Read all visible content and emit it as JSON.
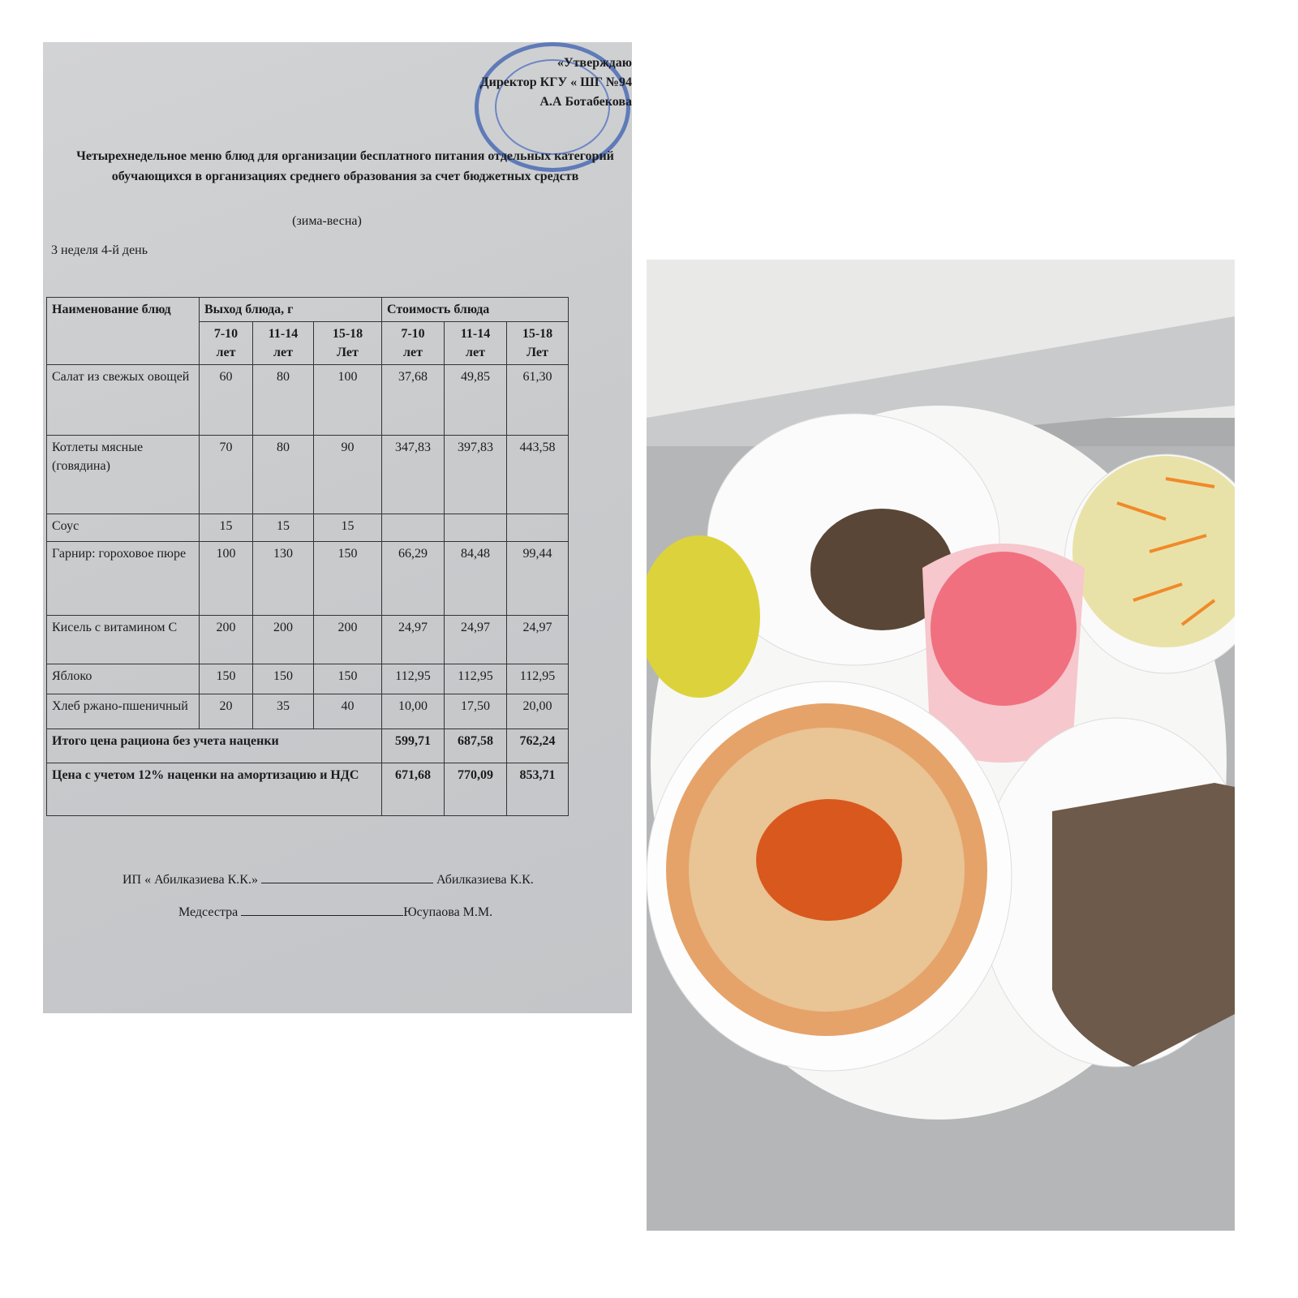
{
  "document": {
    "approval": {
      "line1": "«Утверждаю",
      "line2": "Директор КГУ  « ШГ №94",
      "line3": "А.А Ботабекова"
    },
    "title": "Четырехнедельное меню блюд для организации бесплатного питания отдельных категорий обучающихся в организациях среднего образования за счет бюджетных средств",
    "season": "(зима-весна)",
    "week_day": "3 неделя 4-й день",
    "table": {
      "headers": {
        "name": "Наименование блюд",
        "yield": "Выход блюда, г",
        "cost": "Стоимость блюда"
      },
      "age_groups": [
        [
          "7-10",
          "лет"
        ],
        [
          "11-14",
          "лет"
        ],
        [
          "15-18",
          "Лет"
        ],
        [
          "7-10",
          "лет"
        ],
        [
          "11-14",
          "лет"
        ],
        [
          "15-18",
          "Лет"
        ]
      ],
      "rows": [
        {
          "name": "Салат из свежых овощей",
          "values": [
            "60",
            "80",
            "100",
            "37,68",
            "49,85",
            "61,30"
          ]
        },
        {
          "name": "Котлеты мясные (говядина)",
          "values": [
            "70",
            "80",
            "90",
            "347,83",
            "397,83",
            "443,58"
          ]
        },
        {
          "name": "Соус",
          "values": [
            "15",
            "15",
            "15",
            "",
            "",
            ""
          ]
        },
        {
          "name": "Гарнир: гороховое пюре",
          "values": [
            "100",
            "130",
            "150",
            "66,29",
            "84,48",
            "99,44"
          ]
        },
        {
          "name": "Кисель с витамином С",
          "values": [
            "200",
            "200",
            "200",
            "24,97",
            "24,97",
            "24,97"
          ]
        },
        {
          "name": "Яблоко",
          "values": [
            "150",
            "150",
            "150",
            "112,95",
            "112,95",
            "112,95"
          ]
        },
        {
          "name": "Хлеб ржано-пшеничный",
          "values": [
            "20",
            "35",
            "40",
            "10,00",
            "17,50",
            "20,00"
          ]
        }
      ],
      "totals": [
        {
          "label": "Итого цена рациона без учета наценки",
          "values": [
            "599,71",
            "687,58",
            "762,24"
          ]
        },
        {
          "label": "Цена с учетом 12% наценки на амортизацию и НДС",
          "values": [
            "671,68",
            "770,09",
            "853,71"
          ]
        }
      ]
    },
    "signatures": [
      {
        "role": "ИП « Абилказиева К.К.»",
        "name": "Абилказиева К.К."
      },
      {
        "role": "Медсестра",
        "name": "Юсупаова М.М."
      }
    ]
  },
  "colors": {
    "paper": "#c9cbcd",
    "stamp": "#3a5fb0",
    "soup": "#e07a3a",
    "drink": "#f06a7a",
    "bread": "#6e5a4a"
  }
}
